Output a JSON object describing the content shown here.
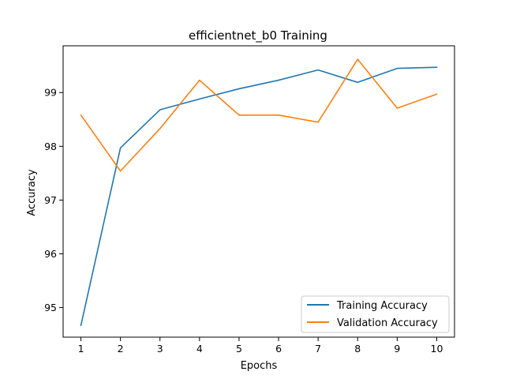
{
  "chart_data": {
    "type": "line",
    "title": "efficientnet_b0 Training",
    "xlabel": "Epochs",
    "ylabel": "Accuracy",
    "x": [
      1,
      2,
      3,
      4,
      5,
      6,
      7,
      8,
      9,
      10
    ],
    "xlim": [
      0.55,
      10.45
    ],
    "ylim": [
      94.45,
      99.87
    ],
    "xticks": [
      "1",
      "2",
      "3",
      "4",
      "5",
      "6",
      "7",
      "8",
      "9",
      "10"
    ],
    "yticks": [
      95,
      96,
      97,
      98,
      99
    ],
    "ytick_labels": [
      "95",
      "96",
      "97",
      "98",
      "99"
    ],
    "grid": false,
    "legend_position": "lower-right",
    "series": [
      {
        "name": "Training Accuracy",
        "color": "#1f77b4",
        "values": [
          94.67,
          97.97,
          98.68,
          98.88,
          99.07,
          99.23,
          99.42,
          99.19,
          99.45,
          99.47
        ]
      },
      {
        "name": "Validation Accuracy",
        "color": "#ff7f0e",
        "values": [
          98.58,
          97.54,
          98.33,
          99.23,
          98.58,
          98.58,
          98.45,
          99.62,
          98.71,
          98.97
        ]
      }
    ]
  }
}
